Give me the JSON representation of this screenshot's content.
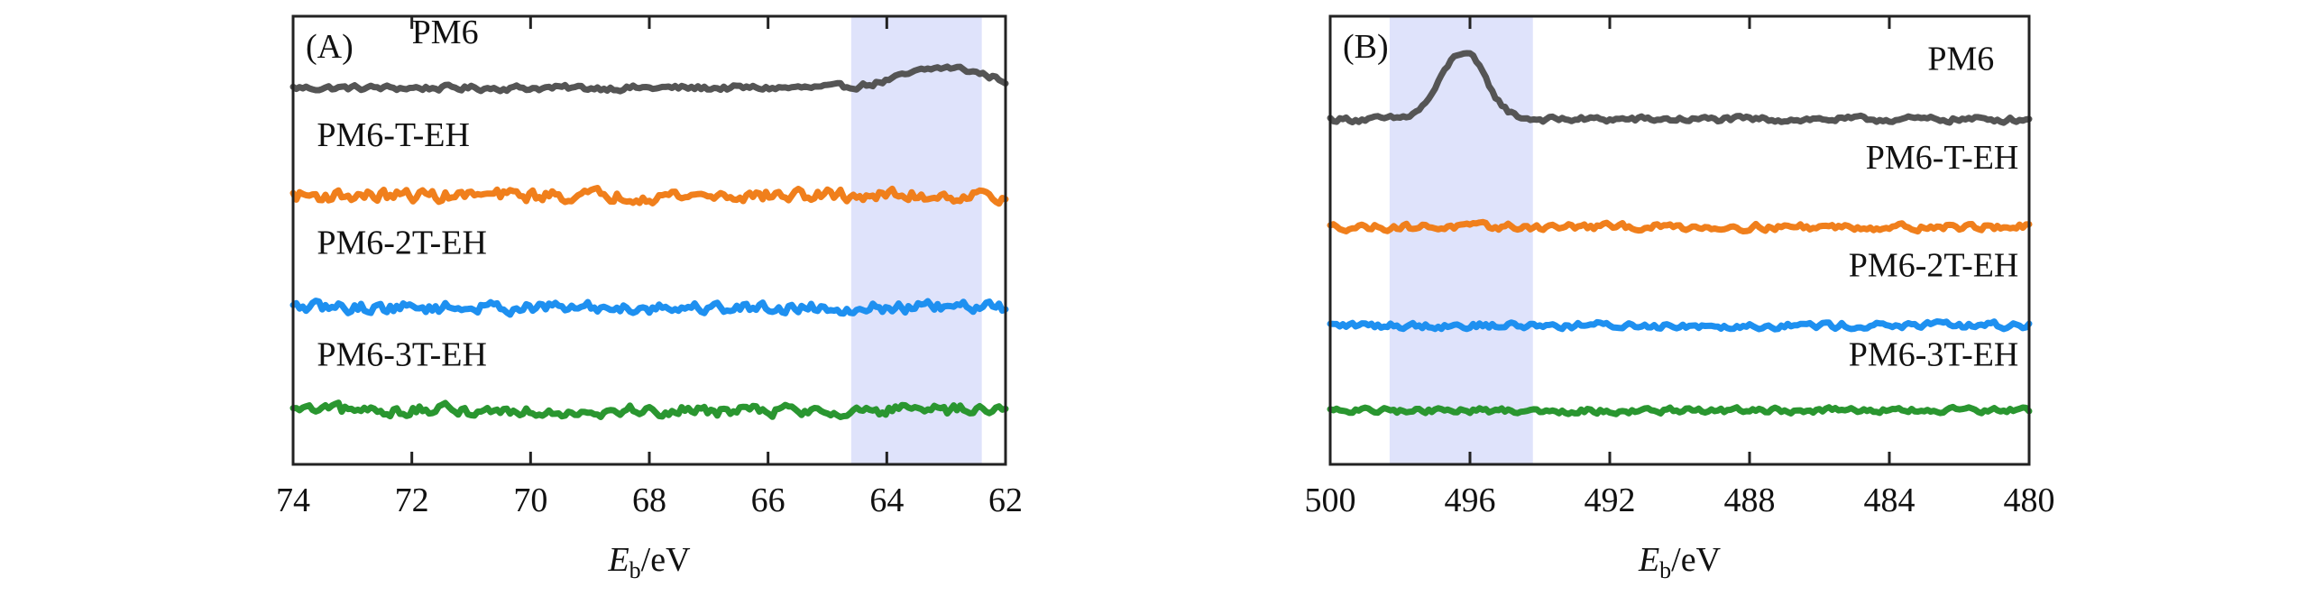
{
  "chart_data": [
    {
      "type": "line",
      "panel": "(A)",
      "xlabel_main": "E",
      "xlabel_sub": "b",
      "xlabel_unit": "/eV",
      "xlim": [
        74,
        62
      ],
      "x_ticks": [
        74,
        72,
        70,
        68,
        66,
        64,
        62
      ],
      "x_tick_labels": [
        "74",
        "72",
        "70",
        "68",
        "66",
        "64",
        "62"
      ],
      "y_ticks_shown": false,
      "grid": false,
      "highlight_band": {
        "x_from": 64.6,
        "x_to": 62.4,
        "color": "#dfe3fb"
      },
      "series": [
        {
          "name": "PM6",
          "color": "#555555",
          "baseline": 0.84,
          "noise": 0.01,
          "label_x": 72.0,
          "label_y": 0.94,
          "label_anchor": "start",
          "peaks": [
            {
              "center": 63.0,
              "width": 1.0,
              "height": 0.045
            }
          ]
        },
        {
          "name": "PM6-T-EH",
          "color": "#f07f1c",
          "baseline": 0.6,
          "noise": 0.022,
          "label_x": 73.6,
          "label_y": 0.71,
          "label_anchor": "start",
          "peaks": []
        },
        {
          "name": "PM6-2T-EH",
          "color": "#1e90f0",
          "baseline": 0.35,
          "noise": 0.02,
          "label_x": 73.6,
          "label_y": 0.47,
          "label_anchor": "start",
          "peaks": []
        },
        {
          "name": "PM6-3T-EH",
          "color": "#2a9630",
          "baseline": 0.12,
          "noise": 0.02,
          "label_x": 73.6,
          "label_y": 0.22,
          "label_anchor": "start",
          "peaks": []
        }
      ]
    },
    {
      "type": "line",
      "panel": "(B)",
      "xlabel_main": "E",
      "xlabel_sub": "b",
      "xlabel_unit": "/eV",
      "xlim": [
        500,
        480
      ],
      "x_ticks": [
        500,
        496,
        492,
        488,
        484,
        480
      ],
      "x_tick_labels": [
        "500",
        "496",
        "492",
        "488",
        "484",
        "480"
      ],
      "y_ticks_shown": false,
      "grid": false,
      "highlight_band": {
        "x_from": 498.3,
        "x_to": 494.2,
        "color": "#dfe3fb"
      },
      "series": [
        {
          "name": "PM6",
          "color": "#555555",
          "baseline": 0.77,
          "noise": 0.01,
          "label_x": 481.0,
          "label_y": 0.88,
          "label_anchor": "end",
          "peaks": [
            {
              "center": 496.2,
              "width": 0.9,
              "height": 0.15
            }
          ]
        },
        {
          "name": "PM6-T-EH",
          "color": "#f07f1c",
          "baseline": 0.53,
          "noise": 0.012,
          "label_x": 480.3,
          "label_y": 0.66,
          "label_anchor": "end",
          "peaks": []
        },
        {
          "name": "PM6-2T-EH",
          "color": "#1e90f0",
          "baseline": 0.31,
          "noise": 0.012,
          "label_x": 480.3,
          "label_y": 0.42,
          "label_anchor": "end",
          "peaks": []
        },
        {
          "name": "PM6-3T-EH",
          "color": "#2a9630",
          "baseline": 0.12,
          "noise": 0.01,
          "label_x": 480.3,
          "label_y": 0.22,
          "label_anchor": "end",
          "peaks": []
        }
      ]
    }
  ]
}
